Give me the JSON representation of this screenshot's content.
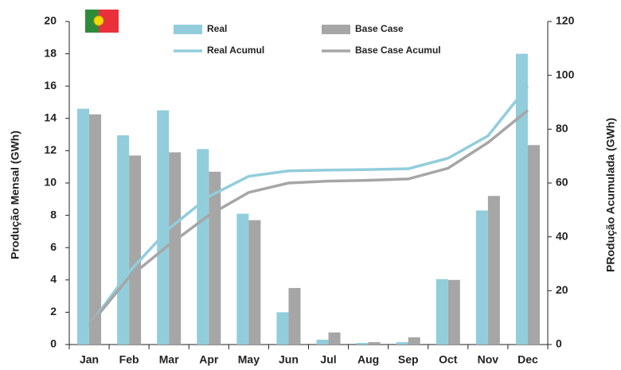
{
  "chart_data": {
    "type": "bar_line",
    "categories": [
      "Jan",
      "Feb",
      "Mar",
      "Apr",
      "May",
      "Jun",
      "Jul",
      "Aug",
      "Sep",
      "Oct",
      "Nov",
      "Dec"
    ],
    "series": [
      {
        "name": "Real",
        "kind": "bar",
        "color": "#92cddc",
        "values": [
          14.6,
          12.95,
          14.5,
          12.1,
          8.1,
          2.0,
          0.3,
          0.1,
          0.15,
          4.05,
          8.3,
          18.0
        ]
      },
      {
        "name": "Base Case",
        "kind": "bar",
        "color": "#a6a6a6",
        "values": [
          14.25,
          11.7,
          11.9,
          10.7,
          7.7,
          3.5,
          0.75,
          0.15,
          0.45,
          4.0,
          9.2,
          12.35
        ]
      },
      {
        "name": "Real Acumul",
        "kind": "line",
        "axis": "y2",
        "color": "#92cddc",
        "values": [
          7,
          27,
          43,
          55,
          62.5,
          64.5,
          64.8,
          65,
          65.3,
          69.2,
          77.5,
          96
        ]
      },
      {
        "name": "Base Case Acumul",
        "kind": "line",
        "axis": "y2",
        "color": "#a6a6a6",
        "values": [
          7,
          25,
          37,
          48,
          56.5,
          60,
          60.7,
          61,
          61.5,
          65.5,
          75,
          87
        ]
      }
    ],
    "ylabel": "Produção Mensal (GWh)",
    "y2label": "PRodução Acumulada (GWh)",
    "ylim": [
      0,
      20
    ],
    "yticks": [
      0,
      2,
      4,
      6,
      8,
      10,
      12,
      14,
      16,
      18,
      20
    ],
    "y2lim": [
      0,
      120
    ],
    "y2ticks": [
      0,
      20,
      40,
      60,
      80,
      100,
      120
    ],
    "grid": false
  }
}
